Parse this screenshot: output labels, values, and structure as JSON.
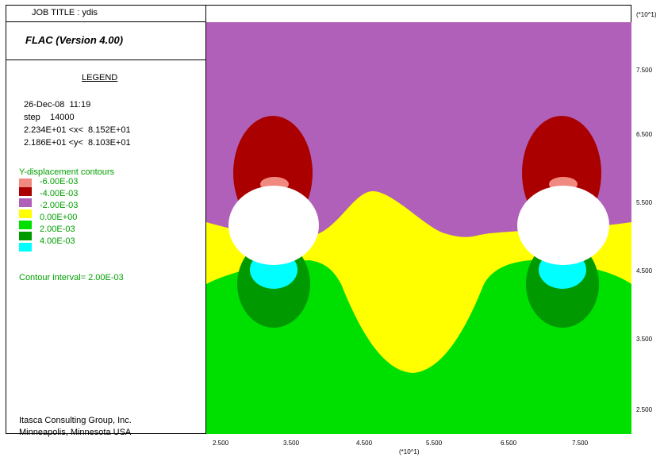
{
  "job_title": "JOB TITLE : ydis",
  "version": "FLAC (Version 4.00)",
  "legend": {
    "heading": "LEGEND",
    "date": "26-Dec-08  11:19",
    "step": "step    14000",
    "x_range": "2.234E+01 <x<  8.152E+01",
    "y_range": "2.186E+01 <y<  8.103E+01"
  },
  "contours": {
    "title": "Y-displacement contours",
    "levels": [
      {
        "label": "-6.00E-03",
        "color": "#f08a80"
      },
      {
        "label": "-4.00E-03",
        "color": "#aa0000"
      },
      {
        "label": "-2.00E-03",
        "color": "#b060b8"
      },
      {
        "label": "0.00E+00",
        "color": "#ffff00"
      },
      {
        "label": "2.00E-03",
        "color": "#00e000"
      },
      {
        "label": "4.00E-03",
        "color": "#009a00"
      },
      {
        "label": "",
        "color": "#00ffff"
      }
    ],
    "interval": "Contour interval=  2.00E-03"
  },
  "footer": {
    "company": "Itasca Consulting Group, Inc.",
    "location": "Minneapolis, Minnesota  USA"
  },
  "axes": {
    "x_ticks": [
      "2.500",
      "3.500",
      "4.500",
      "5.500",
      "6.500",
      "7.500"
    ],
    "x_scale": "(*10^1)",
    "y_ticks": [
      "7.500",
      "6.500",
      "5.500",
      "4.500",
      "3.500",
      "2.500"
    ],
    "y_scale": "(*10^1)"
  }
}
